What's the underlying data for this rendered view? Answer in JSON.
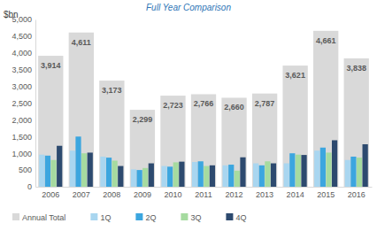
{
  "chart_data": {
    "type": "bar",
    "title": "Full Year Comparison",
    "y_label": "$bn",
    "categories": [
      "2006",
      "2007",
      "2008",
      "2009",
      "2010",
      "2011",
      "2012",
      "2013",
      "2014",
      "2015",
      "2016"
    ],
    "series": [
      {
        "name": "Annual Total",
        "color": "#d9d9d9",
        "values": [
          3914,
          4611,
          3173,
          2299,
          2723,
          2766,
          2660,
          2787,
          3621,
          4661,
          3838
        ],
        "value_labels": [
          "3,914",
          "4,611",
          "3,173",
          "2,299",
          "2,723",
          "2,766",
          "2,660",
          "2,787",
          "3,621",
          "4,661",
          "3,838"
        ]
      },
      {
        "name": "1Q",
        "color": "#a9d6f0",
        "values": [
          960,
          1080,
          900,
          520,
          620,
          740,
          640,
          700,
          700,
          1080,
          800
        ]
      },
      {
        "name": "2Q",
        "color": "#3ca6df",
        "values": [
          930,
          1500,
          870,
          500,
          600,
          760,
          660,
          640,
          1000,
          1170,
          900
        ]
      },
      {
        "name": "3Q",
        "color": "#a6dba0",
        "values": [
          800,
          1000,
          780,
          560,
          730,
          620,
          480,
          760,
          960,
          1020,
          870
        ]
      },
      {
        "name": "4Q",
        "color": "#2d4a6f",
        "values": [
          1224,
          1020,
          620,
          700,
          750,
          640,
          880,
          700,
          950,
          1390,
          1270
        ]
      }
    ],
    "ylim": [
      0,
      5000
    ],
    "yticks": [
      0,
      500,
      {
        "value": 1000,
        "label": "1,000"
      },
      {
        "value": 1500,
        "label": "1,500"
      },
      {
        "value": 2000,
        "label": "2,000"
      },
      {
        "value": 2500,
        "label": "2,500"
      },
      {
        "value": 3000,
        "label": "3,000"
      },
      {
        "value": 3500,
        "label": "3,500"
      },
      {
        "value": 4000,
        "label": "4,000"
      },
      {
        "value": 4500,
        "label": "4,500"
      },
      {
        "value": 5000,
        "label": "5,000"
      }
    ],
    "grid": false,
    "data_labels": true,
    "legend": "bottom"
  }
}
